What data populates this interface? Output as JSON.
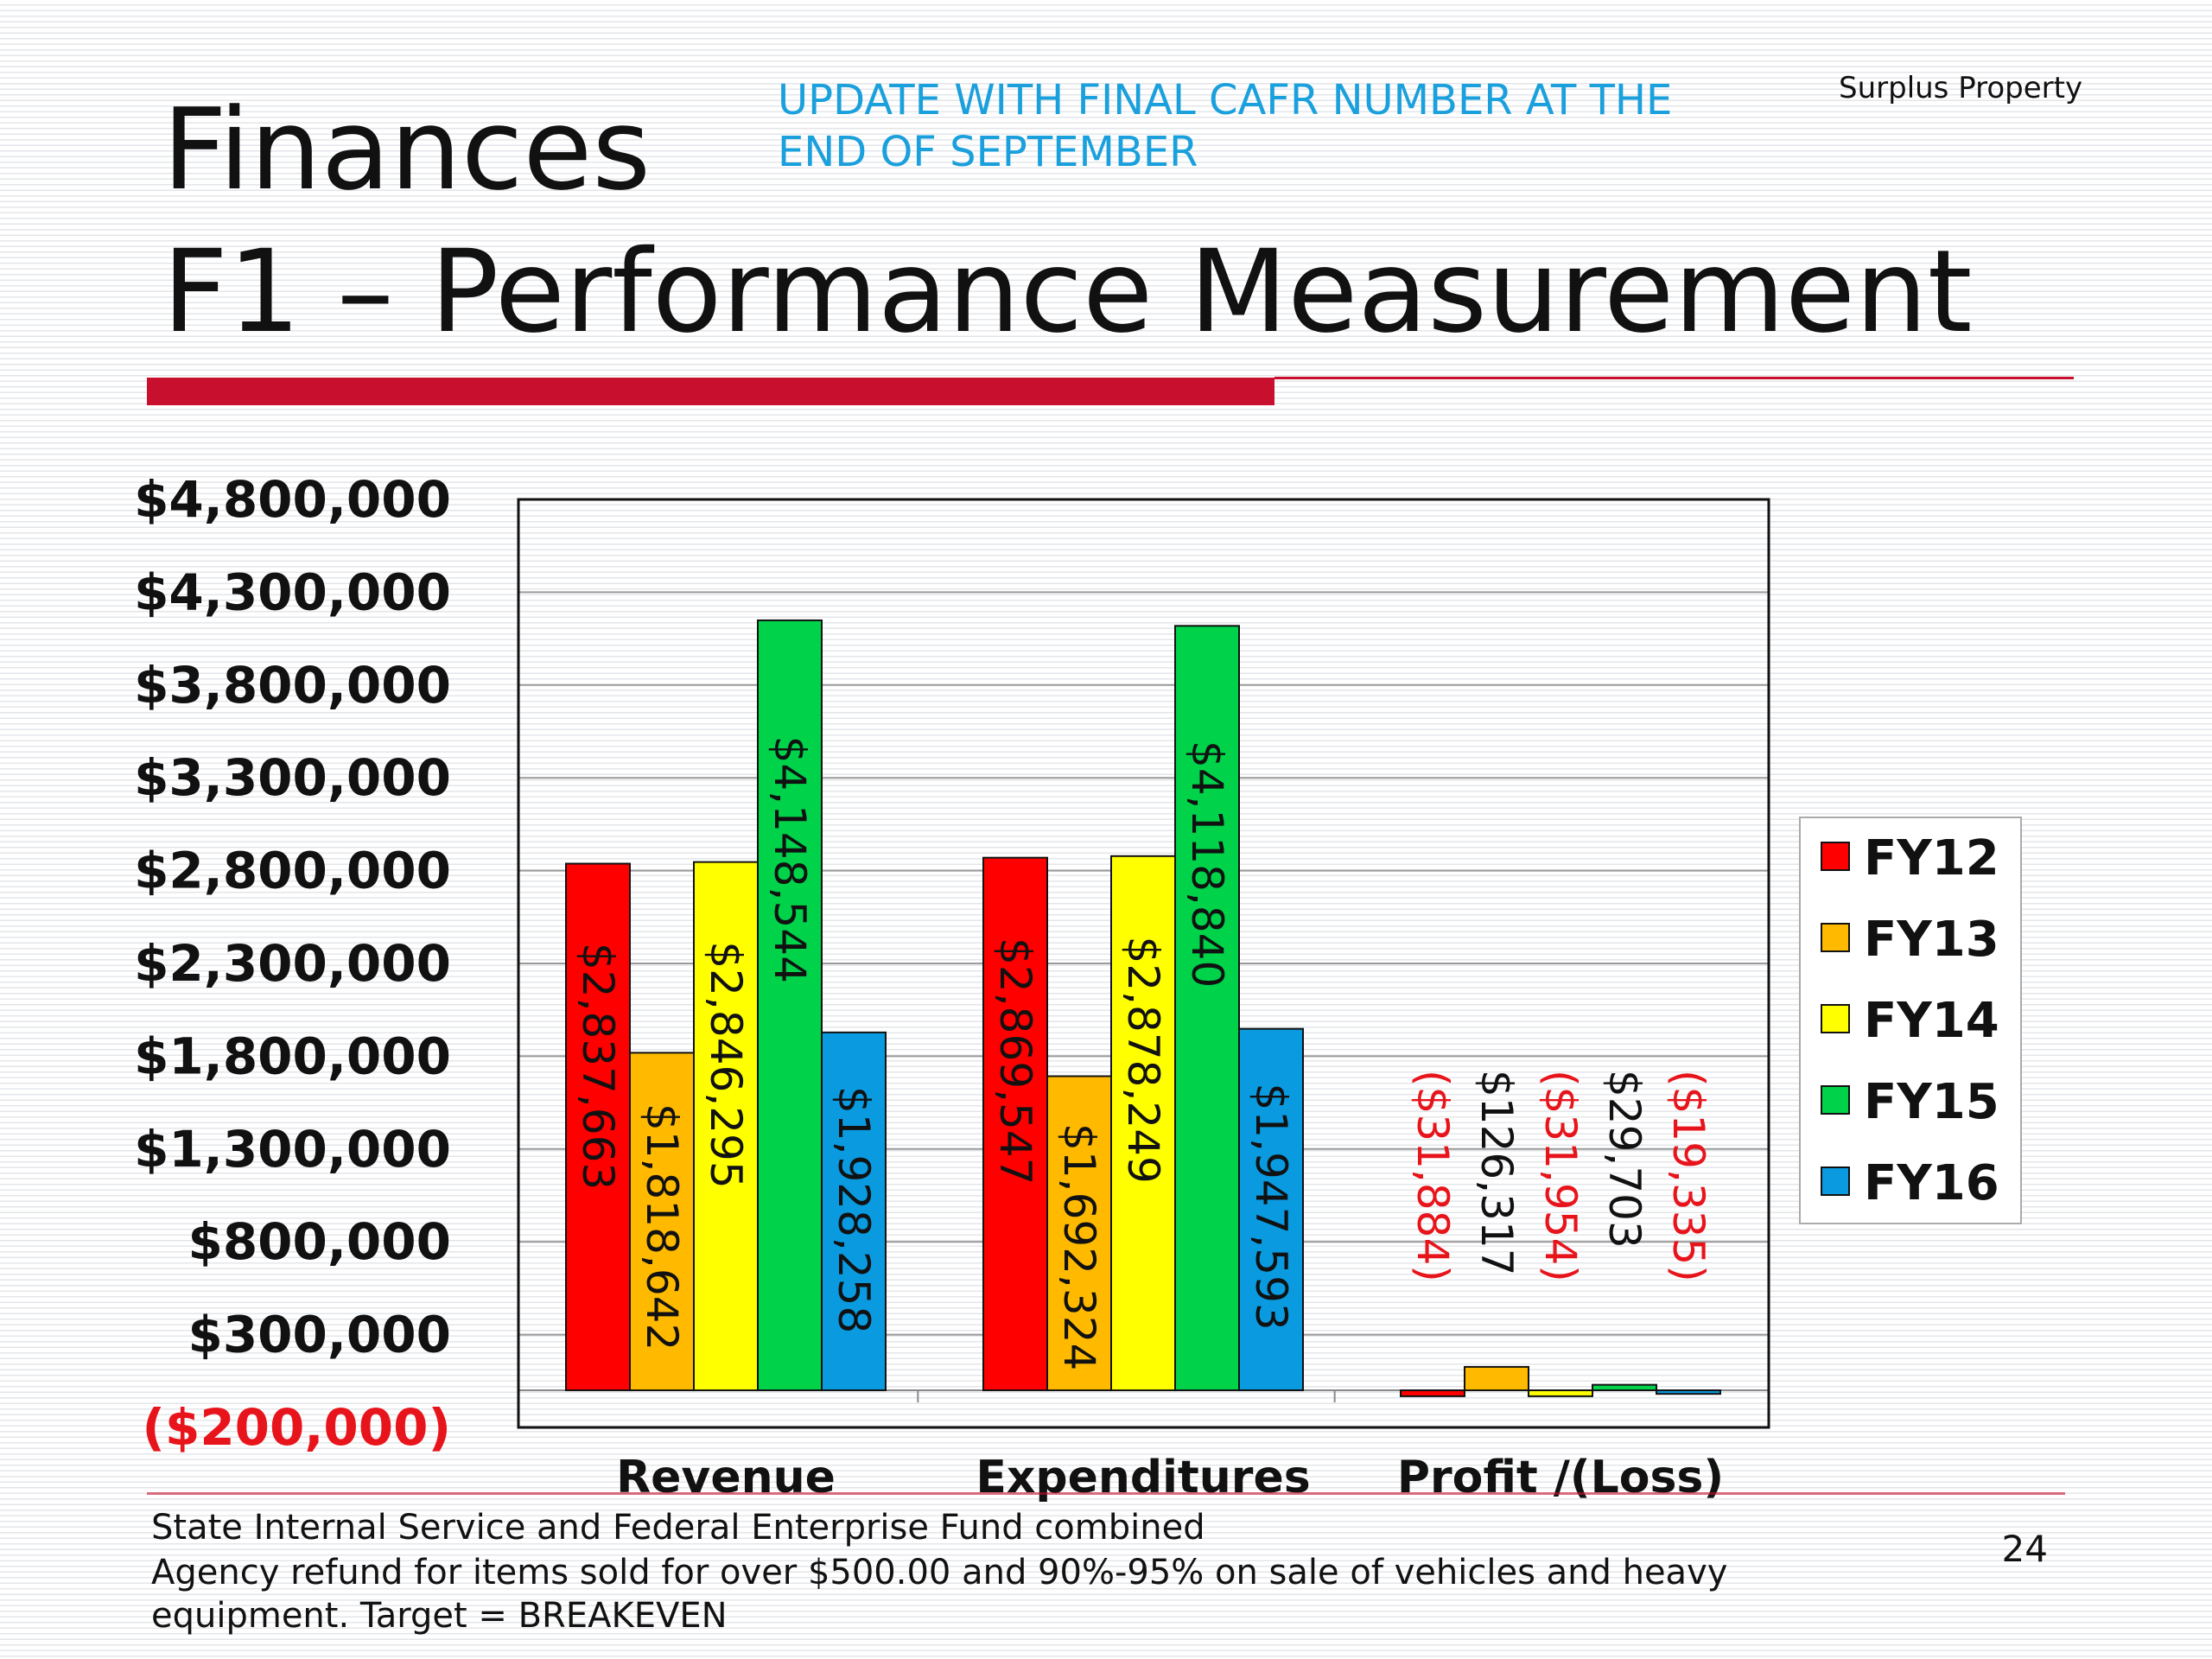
{
  "slide": {
    "title_line1": "Finances",
    "title_line2": "F1 – Performance Measurement",
    "note_line1": "UPDATE WITH FINAL CAFR NUMBER AT THE",
    "note_line2": "END OF SEPTEMBER",
    "department": "Surplus Property",
    "footer_line1": "State Internal Service and Federal Enterprise Fund combined",
    "footer_line2": "Agency refund for items sold for over $500.00 and 90%-95% on sale of vehicles and heavy",
    "footer_line3": "equipment.  Target = BREAKEVEN",
    "page_number": "24"
  },
  "colors": {
    "accent_red": "#c8102e",
    "note_blue": "#1aa0dc",
    "negative_text": "#e8141c"
  },
  "chart_data": {
    "type": "bar",
    "title": "",
    "xlabel": "",
    "ylabel": "",
    "categories": [
      "Revenue",
      "Expenditures",
      "Profit /(Loss)"
    ],
    "ylim": [
      -200000,
      4800000
    ],
    "yticks": [
      -200000,
      300000,
      800000,
      1300000,
      1800000,
      2300000,
      2800000,
      3300000,
      3800000,
      4300000,
      4800000
    ],
    "ytick_labels": [
      "($200,000)",
      "$300,000",
      "$800,000",
      "$1,300,000",
      "$1,800,000",
      "$2,300,000",
      "$2,800,000",
      "$3,300,000",
      "$3,800,000",
      "$4,300,000",
      "$4,800,000"
    ],
    "grid": true,
    "legend_position": "right",
    "series": [
      {
        "name": "FY12",
        "color": "#ff0000",
        "values": [
          2837663,
          2869547,
          -31884
        ],
        "labels": [
          "$2,837,663",
          "$2,869,547",
          "($31,884)"
        ]
      },
      {
        "name": "FY13",
        "color": "#ffba00",
        "values": [
          1818642,
          1692324,
          126317
        ],
        "labels": [
          "$1,818,642",
          "$1,692,324",
          "$126,317"
        ]
      },
      {
        "name": "FY14",
        "color": "#ffff00",
        "values": [
          2846295,
          2878249,
          -31954
        ],
        "labels": [
          "$2,846,295",
          "$2,878,249",
          "($31,954)"
        ]
      },
      {
        "name": "FY15",
        "color": "#00d24a",
        "values": [
          4148544,
          4118840,
          29703
        ],
        "labels": [
          "$4,148,544",
          "$4,118,840",
          "$29,703"
        ]
      },
      {
        "name": "FY16",
        "color": "#0a9ae0",
        "values": [
          1928258,
          1947593,
          -19335
        ],
        "labels": [
          "$1,928,258",
          "$1,947,593",
          "($19,335)"
        ]
      }
    ]
  }
}
